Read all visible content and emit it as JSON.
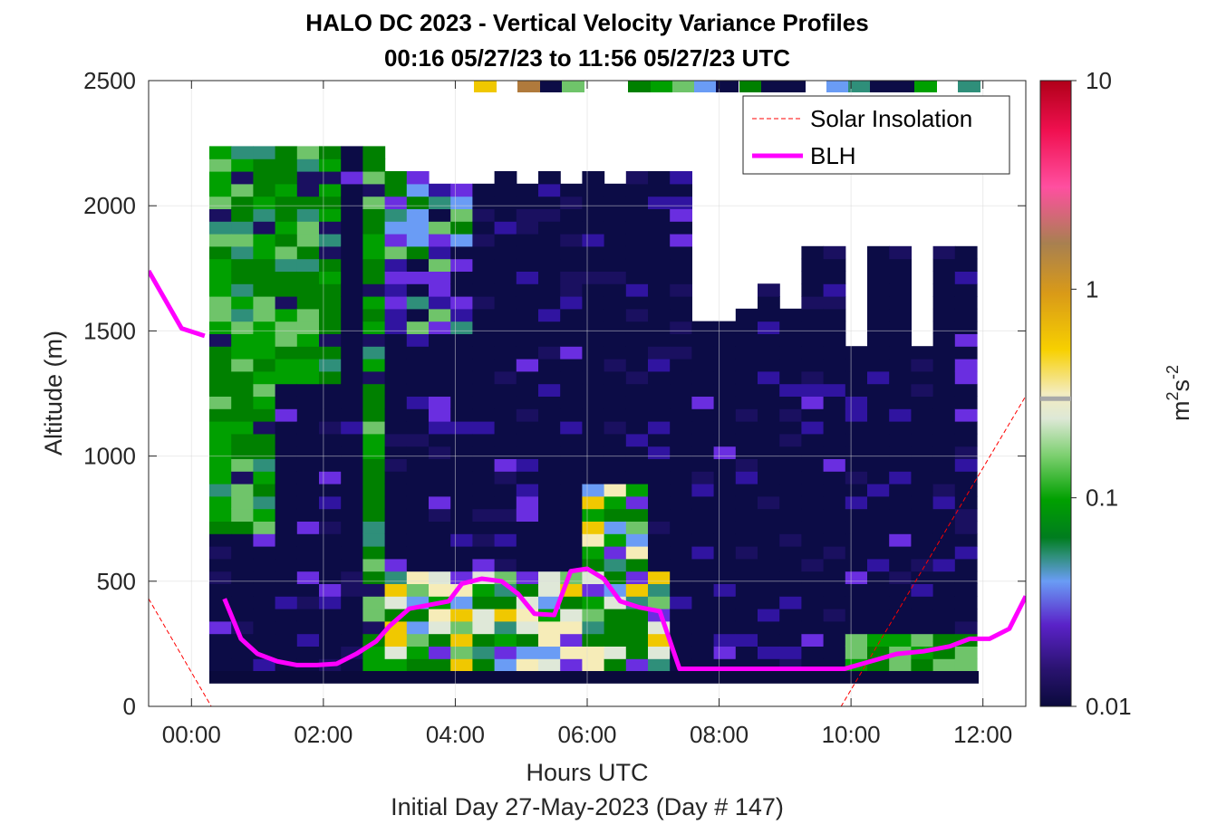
{
  "chart_data": {
    "type": "heatmap",
    "title": "HALO DC 2023 - Vertical Velocity Variance Profiles",
    "subtitle": "00:16 05/27/23 to 11:56 05/27/23  UTC",
    "xlabel": "Hours UTC",
    "ylabel": "Altitude (m)",
    "footnote": "Initial Day 27-May-2023 (Day # 147)",
    "xlim": [
      -0.65,
      12.65
    ],
    "ylim": [
      0,
      2500
    ],
    "x_ticks": [
      "00:00",
      "02:00",
      "04:00",
      "06:00",
      "08:00",
      "10:00",
      "12:00"
    ],
    "x_tick_values": [
      0,
      2,
      4,
      6,
      8,
      10,
      12
    ],
    "y_ticks": [
      "0",
      "500",
      "1000",
      "1500",
      "2000",
      "2500"
    ],
    "y_tick_values": [
      0,
      500,
      1000,
      1500,
      2000,
      2500
    ],
    "grid": true,
    "legend_position": "top-right",
    "colorbar": {
      "label_base": "m",
      "label_sup1": "2",
      "label_mid": "s",
      "label_sup2": "-2",
      "scale": "log",
      "range": [
        0.01,
        10
      ],
      "ticks": [
        "0.01",
        "0.1",
        "1",
        "10"
      ],
      "tick_values": [
        0.01,
        0.1,
        1,
        10
      ],
      "marker_value": 0.3
    },
    "series": [
      {
        "name": "Solar Insolation",
        "style": "dashed",
        "color": "#ff0000",
        "x": [
          -0.65,
          0.3,
          9.85,
          12.65
        ],
        "y": [
          430,
          0,
          0,
          1240
        ]
      },
      {
        "name": "BLH",
        "style": "solid",
        "color": "#ff00ff",
        "segments": [
          {
            "x": [
              -0.65,
              -0.15,
              0.2
            ],
            "y": [
              1740,
              1510,
              1480
            ]
          },
          {
            "x": [
              0.5,
              0.75,
              1.0,
              1.3,
              1.6,
              1.9,
              2.2,
              2.5,
              2.8,
              3.0,
              3.3,
              3.6,
              3.9,
              4.1,
              4.4,
              4.7,
              4.95,
              5.2,
              5.5,
              5.75,
              6.0,
              6.25,
              6.5,
              6.8,
              7.1,
              7.4,
              7.7,
              8.0,
              8.5,
              9.0,
              9.5,
              9.9,
              10.3,
              10.7,
              11.1,
              11.5,
              11.8,
              12.1,
              12.4,
              12.65
            ],
            "y": [
              430,
              270,
              210,
              180,
              165,
              165,
              170,
              210,
              260,
              320,
              390,
              405,
              420,
              490,
              510,
              500,
              450,
              370,
              365,
              540,
              550,
              510,
              420,
              395,
              380,
              150,
              150,
              150,
              150,
              150,
              150,
              150,
              180,
              210,
              220,
              240,
              270,
              270,
              310,
              440
            ]
          }
        ]
      }
    ]
  }
}
